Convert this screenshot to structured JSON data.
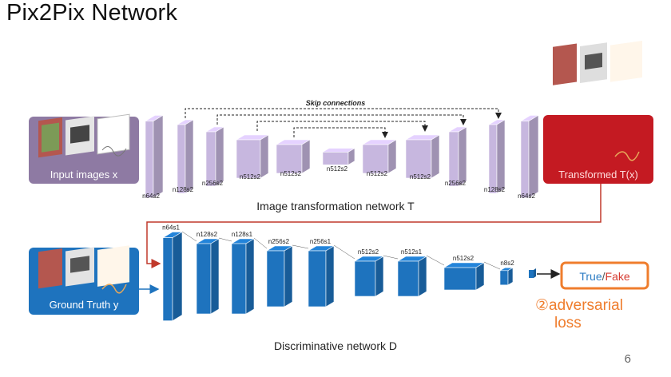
{
  "slide": {
    "title": "Pix2Pix Network",
    "page_number": "6"
  },
  "generator": {
    "caption": "Image transformation network T",
    "skip_label": "Skip connections",
    "input_label": "Input images x",
    "output_label": "Transformed T(x)",
    "layers": [
      "n64s2",
      "n128s2",
      "n256s2",
      "n512s2",
      "n512s2",
      "n512s2",
      "n512s2",
      "n512s2",
      "n256s2",
      "n128s2",
      "n64s2"
    ]
  },
  "discriminator": {
    "caption": "Discriminative network D",
    "input_label": "Ground Truth y",
    "layers": [
      "n64s1",
      "n128s2",
      "n128s1",
      "n256s2",
      "n256s1",
      "n512s2",
      "n512s1",
      "n512s2",
      "n8s2"
    ],
    "output_true": "True",
    "output_sep": "/",
    "output_fake": "Fake",
    "loss_line1": "②adversarial",
    "loss_line2": "loss"
  },
  "colors": {
    "gen_layer": "#c7b7df",
    "disc_layer": "#1e73be",
    "input_box": "#8e7aa3",
    "output_box": "#c41a22",
    "gt_box": "#1e73be",
    "result_border": "#ef7d2d",
    "connector": "#c0392b"
  }
}
